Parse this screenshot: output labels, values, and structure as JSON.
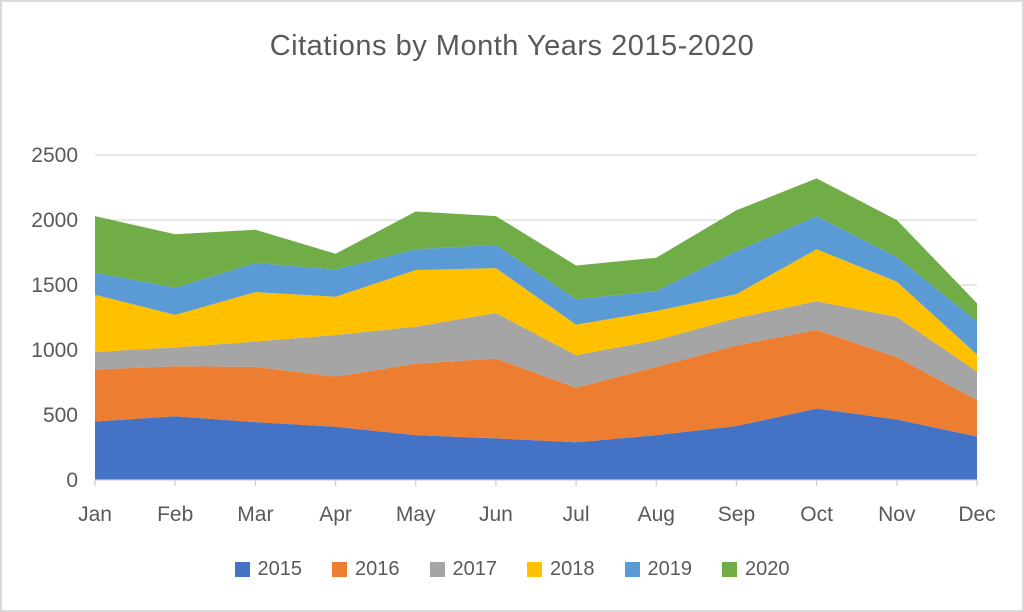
{
  "window": {
    "background": "#FFFFFF",
    "border_color": "#D9D9D9"
  },
  "chart_data": {
    "type": "area",
    "stacked": true,
    "title": "Citations by Month Years 2015-2020",
    "categories": [
      "Jan",
      "Feb",
      "Mar",
      "Apr",
      "May",
      "Jun",
      "Jul",
      "Aug",
      "Sep",
      "Oct",
      "Nov",
      "Dec"
    ],
    "series": [
      {
        "name": "2015",
        "color": "#4472C4",
        "values": [
          450,
          490,
          445,
          410,
          345,
          320,
          290,
          345,
          415,
          550,
          465,
          335
        ]
      },
      {
        "name": "2016",
        "color": "#ED7D31",
        "values": [
          400,
          385,
          425,
          385,
          550,
          615,
          420,
          525,
          620,
          605,
          480,
          280
        ]
      },
      {
        "name": "2017",
        "color": "#A5A5A5",
        "values": [
          135,
          145,
          195,
          320,
          285,
          350,
          250,
          205,
          210,
          220,
          310,
          220
        ]
      },
      {
        "name": "2018",
        "color": "#FFC000",
        "values": [
          440,
          250,
          380,
          295,
          435,
          345,
          235,
          225,
          185,
          400,
          270,
          130
        ]
      },
      {
        "name": "2019",
        "color": "#5B9BD5",
        "values": [
          170,
          210,
          225,
          210,
          160,
          180,
          195,
          155,
          330,
          255,
          190,
          255
        ]
      },
      {
        "name": "2020",
        "color": "#70AD47",
        "values": [
          435,
          410,
          255,
          120,
          290,
          220,
          260,
          255,
          315,
          290,
          285,
          140
        ]
      }
    ],
    "stacked_totals": [
      2030,
      1890,
      1925,
      1740,
      2065,
      2030,
      1650,
      1710,
      2075,
      2320,
      2000,
      1360
    ],
    "xlabel": "",
    "ylabel": "",
    "ylim": [
      0,
      2500
    ],
    "yticks": [
      "0",
      "500",
      "1000",
      "1500",
      "2000",
      "2500"
    ],
    "grid": true,
    "gridline_color": "#D9D9D9",
    "axis_line_color": "#D0D0D0",
    "axis_text_color": "#595959",
    "title_color": "#595959",
    "legend_position": "bottom"
  }
}
